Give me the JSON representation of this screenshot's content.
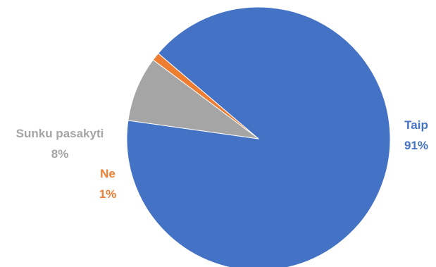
{
  "chart_data": {
    "type": "pie",
    "slices": [
      {
        "name": "Taip",
        "value": 91,
        "label": "91%",
        "color": "#4472C4"
      },
      {
        "name": "Ne",
        "value": 1,
        "label": "1%",
        "color": "#ED7D31"
      },
      {
        "name": "Sunku pasakyti",
        "value": 8,
        "label": "8%",
        "color": "#A5A5A5"
      }
    ],
    "start_angle_deg": 188,
    "direction": "counterclockwise",
    "legend": "none"
  }
}
